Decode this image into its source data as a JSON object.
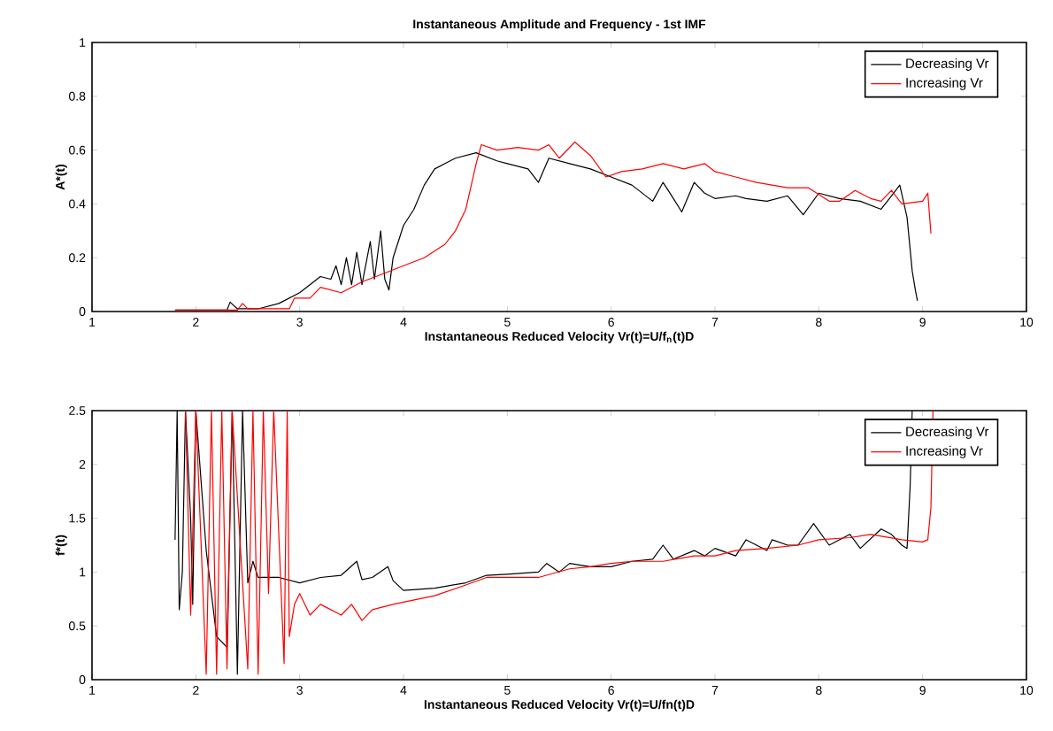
{
  "chart_data": [
    {
      "type": "line",
      "title": "Instantaneous Amplitude and Frequency - 1st IMF",
      "xlabel": "Instantaneous Reduced Velocity Vr(t)=U/f$_{n}$(t)D",
      "ylabel": "A*(t)",
      "xlim": [
        1,
        10
      ],
      "xticks": [
        1,
        2,
        3,
        4,
        5,
        6,
        7,
        8,
        9,
        10
      ],
      "ylim": [
        0,
        1
      ],
      "yticks": [
        0,
        0.2,
        0.4,
        0.6,
        0.8,
        1
      ],
      "legend": "top right",
      "grid": false,
      "series": [
        {
          "name": "Decreasing Vr",
          "color": "#000000",
          "x": [
            1.8,
            2.3,
            2.33,
            2.4,
            2.6,
            2.8,
            3.0,
            3.2,
            3.3,
            3.35,
            3.4,
            3.45,
            3.5,
            3.55,
            3.6,
            3.68,
            3.72,
            3.78,
            3.82,
            3.86,
            3.9,
            4.0,
            4.1,
            4.2,
            4.3,
            4.5,
            4.7,
            4.9,
            5.0,
            5.2,
            5.3,
            5.4,
            5.6,
            5.8,
            6.0,
            6.2,
            6.4,
            6.5,
            6.6,
            6.68,
            6.8,
            6.9,
            7.0,
            7.2,
            7.3,
            7.5,
            7.7,
            7.85,
            8.0,
            8.2,
            8.4,
            8.6,
            8.7,
            8.78,
            8.85,
            8.9,
            8.93,
            8.95
          ],
          "values": [
            0.005,
            0.005,
            0.035,
            0.01,
            0.01,
            0.03,
            0.07,
            0.13,
            0.12,
            0.17,
            0.1,
            0.2,
            0.1,
            0.22,
            0.1,
            0.26,
            0.12,
            0.3,
            0.12,
            0.08,
            0.2,
            0.32,
            0.38,
            0.47,
            0.53,
            0.57,
            0.59,
            0.56,
            0.55,
            0.53,
            0.48,
            0.57,
            0.55,
            0.53,
            0.5,
            0.47,
            0.41,
            0.48,
            0.42,
            0.37,
            0.48,
            0.44,
            0.42,
            0.43,
            0.42,
            0.41,
            0.43,
            0.36,
            0.44,
            0.42,
            0.41,
            0.38,
            0.43,
            0.47,
            0.35,
            0.15,
            0.08,
            0.04
          ]
        },
        {
          "name": "Increasing Vr",
          "color": "#ff0000",
          "x": [
            1.8,
            2.4,
            2.45,
            2.5,
            2.9,
            2.95,
            3.1,
            3.2,
            3.4,
            3.6,
            3.8,
            4.0,
            4.2,
            4.4,
            4.5,
            4.6,
            4.7,
            4.75,
            4.9,
            5.1,
            5.3,
            5.4,
            5.5,
            5.65,
            5.8,
            5.95,
            6.1,
            6.3,
            6.5,
            6.7,
            6.9,
            7.0,
            7.2,
            7.4,
            7.7,
            7.9,
            8.1,
            8.2,
            8.35,
            8.5,
            8.6,
            8.7,
            8.8,
            9.0,
            9.05,
            9.08
          ],
          "values": [
            0.005,
            0.005,
            0.03,
            0.01,
            0.01,
            0.05,
            0.05,
            0.09,
            0.07,
            0.11,
            0.14,
            0.17,
            0.2,
            0.25,
            0.3,
            0.38,
            0.55,
            0.62,
            0.6,
            0.61,
            0.6,
            0.62,
            0.57,
            0.63,
            0.58,
            0.5,
            0.52,
            0.53,
            0.55,
            0.53,
            0.55,
            0.52,
            0.5,
            0.48,
            0.46,
            0.46,
            0.41,
            0.41,
            0.45,
            0.42,
            0.41,
            0.45,
            0.4,
            0.41,
            0.44,
            0.29
          ]
        }
      ]
    },
    {
      "type": "line",
      "xlabel": "Instantaneous Reduced Velocity Vr(t)=U/fn(t)D",
      "ylabel": "f*(t)",
      "xlim": [
        1,
        10
      ],
      "xticks": [
        1,
        2,
        3,
        4,
        5,
        6,
        7,
        8,
        9,
        10
      ],
      "ylim": [
        0,
        2.5
      ],
      "yticks": [
        0,
        0.5,
        1,
        1.5,
        2,
        2.5
      ],
      "legend": "top right",
      "grid": false,
      "series": [
        {
          "name": "Decreasing Vr",
          "color": "#000000",
          "x": [
            1.8,
            1.82,
            1.84,
            1.87,
            1.9,
            1.95,
            1.97,
            2.0,
            2.1,
            2.2,
            2.3,
            2.35,
            2.4,
            2.45,
            2.5,
            2.55,
            2.6,
            2.8,
            3.0,
            3.2,
            3.4,
            3.55,
            3.6,
            3.7,
            3.85,
            3.9,
            4.0,
            4.3,
            4.6,
            4.8,
            5.0,
            5.3,
            5.38,
            5.5,
            5.6,
            5.8,
            6.0,
            6.2,
            6.4,
            6.5,
            6.6,
            6.8,
            6.9,
            7.0,
            7.2,
            7.3,
            7.5,
            7.55,
            7.7,
            7.8,
            7.95,
            8.1,
            8.3,
            8.4,
            8.6,
            8.7,
            8.8,
            8.85,
            8.88,
            8.9
          ],
          "values": [
            1.3,
            2.5,
            0.65,
            1.0,
            2.5,
            1.5,
            0.7,
            2.5,
            1.2,
            0.4,
            0.3,
            2.5,
            0.05,
            2.5,
            0.9,
            1.1,
            0.95,
            0.95,
            0.9,
            0.95,
            0.97,
            1.1,
            0.93,
            0.95,
            1.05,
            0.92,
            0.83,
            0.85,
            0.9,
            0.97,
            0.98,
            1.0,
            1.08,
            1.0,
            1.08,
            1.05,
            1.05,
            1.1,
            1.12,
            1.25,
            1.12,
            1.2,
            1.15,
            1.22,
            1.15,
            1.3,
            1.2,
            1.3,
            1.25,
            1.25,
            1.45,
            1.25,
            1.35,
            1.22,
            1.4,
            1.35,
            1.25,
            1.22,
            1.8,
            2.5
          ]
        },
        {
          "name": "Increasing Vr",
          "color": "#ff0000",
          "x": [
            1.9,
            1.95,
            2.0,
            2.1,
            2.15,
            2.2,
            2.25,
            2.3,
            2.35,
            2.5,
            2.55,
            2.6,
            2.65,
            2.7,
            2.75,
            2.85,
            2.88,
            2.9,
            2.95,
            3.0,
            3.1,
            3.2,
            3.4,
            3.5,
            3.6,
            3.7,
            3.9,
            4.0,
            4.3,
            4.6,
            4.8,
            5.0,
            5.3,
            5.6,
            5.8,
            6.0,
            6.2,
            6.5,
            6.8,
            7.0,
            7.2,
            7.5,
            7.8,
            8.0,
            8.3,
            8.5,
            8.8,
            9.0,
            9.05,
            9.08,
            9.1
          ],
          "values": [
            2.5,
            0.6,
            2.5,
            0.05,
            2.5,
            0.05,
            2.5,
            0.1,
            2.5,
            0.1,
            2.5,
            0.05,
            2.5,
            0.8,
            2.5,
            0.15,
            2.5,
            0.4,
            0.7,
            0.8,
            0.6,
            0.7,
            0.6,
            0.7,
            0.55,
            0.65,
            0.7,
            0.72,
            0.78,
            0.88,
            0.95,
            0.95,
            0.95,
            1.03,
            1.05,
            1.08,
            1.1,
            1.1,
            1.15,
            1.15,
            1.2,
            1.22,
            1.25,
            1.3,
            1.32,
            1.35,
            1.3,
            1.28,
            1.3,
            1.6,
            2.5
          ]
        }
      ]
    }
  ]
}
